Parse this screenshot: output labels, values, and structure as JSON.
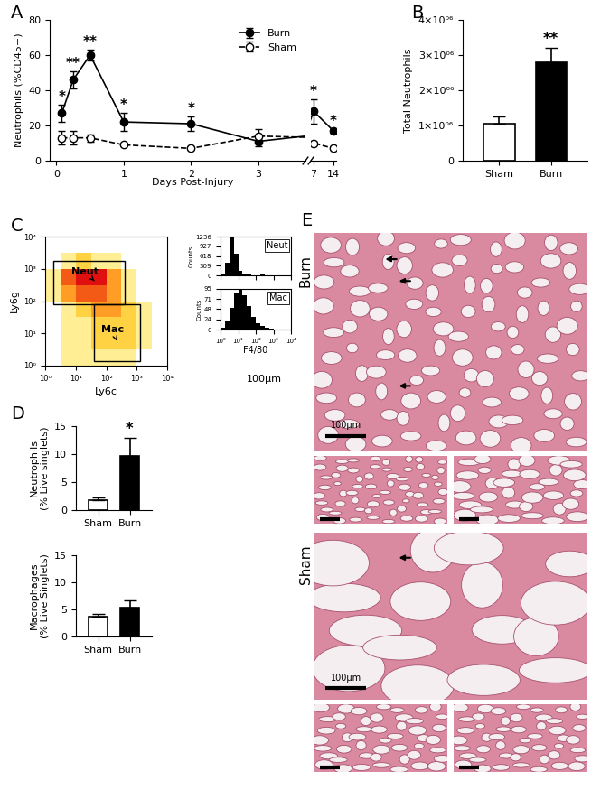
{
  "chart_data": [
    {
      "panel_label": "A",
      "type": "line",
      "x_label": "Days Post-Injury",
      "y_label": "Neutrophils (%CD45+)",
      "x": [
        0.08,
        0.25,
        0.5,
        1,
        2,
        3,
        7,
        14
      ],
      "x_segments": [
        {
          "xlim": [
            -0.1,
            3.7
          ],
          "xticks": [
            0,
            1,
            2,
            3
          ]
        },
        {
          "xlim": [
            6,
            15
          ],
          "xticks": [
            7,
            14
          ]
        }
      ],
      "ylim": [
        0,
        80
      ],
      "yticks": [
        0,
        20,
        40,
        60,
        80
      ],
      "legend": "upper right",
      "series": [
        {
          "name": "Burn",
          "color": "#000000",
          "marker": "filled_circle",
          "line_style": "solid",
          "values": [
            27,
            46,
            60,
            22,
            21,
            11,
            28,
            17
          ],
          "error": [
            5,
            5,
            3,
            5,
            4,
            3,
            7,
            1
          ],
          "significance": [
            "*",
            "**",
            "**",
            "*",
            "*",
            null,
            "*",
            "*"
          ]
        },
        {
          "name": "Sham",
          "color": "#000000",
          "marker": "open_circle",
          "line_style": "dashed",
          "values": [
            13,
            13,
            13,
            9,
            7,
            14,
            10,
            7
          ],
          "error": [
            4,
            4,
            2,
            1,
            1,
            4,
            1,
            1
          ]
        }
      ]
    },
    {
      "panel_label": "B",
      "type": "bar",
      "y_label": "Total Neutrophils",
      "categories": [
        "Sham",
        "Burn"
      ],
      "values": [
        1050000,
        2800000
      ],
      "error": [
        200000,
        400000
      ],
      "significance": [
        null,
        "**"
      ],
      "colors": [
        "#ffffff",
        "#000000"
      ],
      "ylim": [
        0,
        4000000
      ],
      "yticks": [
        0,
        {
          "value": 1000000,
          "label": "1×10⁰⁶"
        },
        {
          "value": 2000000,
          "label": "2×10⁰⁶"
        },
        {
          "value": 3000000,
          "label": "3×10⁰⁶"
        },
        {
          "value": 4000000,
          "label": "4×10⁰⁶"
        }
      ]
    },
    {
      "panel_label": "C",
      "type": "density",
      "x_label": "Ly6c",
      "y_label": "Ly6g",
      "log": true,
      "xlim": [
        1,
        10000
      ],
      "ylim": [
        1,
        10000
      ],
      "xticks": [
        {
          "value": 1,
          "label": "10⁰"
        },
        {
          "value": 10,
          "label": "10¹"
        },
        {
          "value": 100,
          "label": "10²"
        },
        {
          "value": 1000,
          "label": "10³"
        },
        {
          "value": 10000,
          "label": "10⁴"
        }
      ],
      "yticks": [
        {
          "value": 1,
          "label": "10⁰"
        },
        {
          "value": 10,
          "label": "10¹"
        },
        {
          "value": 100,
          "label": "10²"
        },
        {
          "value": 1000,
          "label": "10³"
        },
        {
          "value": 10000,
          "label": "10⁴"
        }
      ],
      "x_edges": [
        1,
        3.16,
        10,
        31.6,
        100,
        316,
        1000,
        3162,
        10000
      ],
      "y_edges": [
        1,
        3.16,
        10,
        31.6,
        100,
        316,
        1000,
        3162,
        10000
      ],
      "density": [
        [
          0,
          1,
          1,
          1,
          1,
          1,
          0,
          0
        ],
        [
          0,
          1,
          1,
          2,
          2,
          2,
          1,
          0
        ],
        [
          0,
          1,
          1,
          2,
          2,
          2,
          1,
          0
        ],
        [
          0,
          1,
          2,
          3,
          3,
          2,
          1,
          0
        ],
        [
          1,
          3,
          4,
          4,
          3,
          1,
          0,
          0
        ],
        [
          1,
          4,
          5,
          5,
          3,
          1,
          0,
          0
        ],
        [
          0,
          1,
          2,
          1,
          1,
          0,
          0,
          0
        ],
        [
          0,
          0,
          0,
          0,
          0,
          0,
          0,
          0
        ]
      ],
      "gates": [
        {
          "label": "Neut",
          "x": [
            1.9,
            400
          ],
          "y": [
            80,
            1740
          ]
        },
        {
          "label": "Mac",
          "x": [
            40,
            1260
          ],
          "y": [
            1.4,
            80
          ]
        }
      ]
    },
    {
      "type": "histogram",
      "title": "Neut",
      "y_label": "Counts",
      "log": "x",
      "tick_labels": "y",
      "xlim": [
        1,
        10000
      ],
      "xticks": [
        {
          "value": 1,
          "label": "10⁰"
        },
        {
          "value": 10,
          "label": "10¹"
        },
        {
          "value": 100,
          "label": "10²"
        },
        {
          "value": 1000,
          "label": "10³"
        },
        {
          "value": 10000,
          "label": "10⁴"
        }
      ],
      "ylim": [
        0,
        1236
      ],
      "yticks": [
        0,
        309,
        618,
        927,
        1236
      ],
      "color": "#000000",
      "bins": [
        1,
        1.78,
        3.16,
        5.62,
        10,
        17.8,
        31.6,
        56.2,
        100,
        178,
        316,
        562,
        1000,
        1778,
        3162,
        5623,
        10000
      ],
      "counts": [
        50,
        400,
        1200,
        700,
        150,
        40,
        15,
        5,
        3,
        20,
        5,
        0,
        0,
        0,
        0,
        0
      ]
    },
    {
      "type": "histogram",
      "title": "Mac",
      "y_label": "Counts",
      "x_label": "F4/80",
      "log": "x",
      "xlim": [
        1,
        10000
      ],
      "xticks": [
        {
          "value": 1,
          "label": "10⁰"
        },
        {
          "value": 10,
          "label": "10¹"
        },
        {
          "value": 100,
          "label": "10²"
        },
        {
          "value": 1000,
          "label": "10³"
        },
        {
          "value": 10000,
          "label": "10⁴"
        }
      ],
      "ylim": [
        0,
        95
      ],
      "yticks": [
        0,
        24,
        48,
        71,
        95
      ],
      "color": "#000000",
      "bins": [
        1,
        1.78,
        3.16,
        5.62,
        10,
        17.8,
        31.6,
        56.2,
        100,
        178,
        316,
        562,
        1000,
        1778,
        3162,
        5623,
        10000
      ],
      "counts": [
        5,
        20,
        50,
        85,
        95,
        80,
        55,
        30,
        15,
        8,
        4,
        2,
        1,
        0,
        0,
        0
      ]
    },
    {
      "panel_label": "D",
      "type": "bar",
      "y_label": "Neutrophils\n(% Live singlets)",
      "categories": [
        "Sham",
        "Burn"
      ],
      "values": [
        1.8,
        9.7
      ],
      "error": [
        0.4,
        3.2
      ],
      "significance": [
        null,
        "*"
      ],
      "colors": [
        "#ffffff",
        "#000000"
      ],
      "ylim": [
        0,
        15
      ],
      "yticks": [
        0,
        5,
        10,
        15
      ]
    },
    {
      "type": "bar",
      "y_label": "Macrophages\n(% Live Singlets)",
      "categories": [
        "Sham",
        "Burn"
      ],
      "values": [
        3.6,
        5.3
      ],
      "error": [
        0.5,
        1.3
      ],
      "colors": [
        "#ffffff",
        "#000000"
      ],
      "ylim": [
        0,
        15
      ],
      "yticks": [
        0,
        5,
        10,
        15
      ]
    }
  ],
  "histology": {
    "panel_label": "E",
    "groups": [
      {
        "label": "Burn",
        "scale_bar": "100μm"
      },
      {
        "label": "Sham",
        "scale_bar": "100μm"
      }
    ],
    "extra_label": "100μm"
  }
}
